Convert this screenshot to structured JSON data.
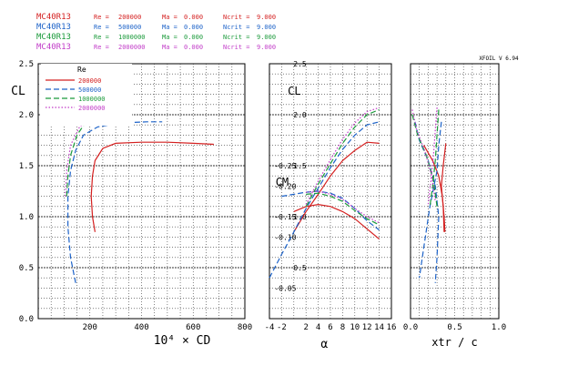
{
  "header": {
    "lines": [
      {
        "airfoil": "MC40R13",
        "re_label": "Re =",
        "re_value": "200000",
        "ma_label": "Ma =",
        "ma_value": "0.000",
        "ncrit_label": "Ncrit =",
        "ncrit_value": "9.000",
        "color": "#d42020"
      },
      {
        "airfoil": "MC40R13",
        "re_label": "Re =",
        "re_value": "500000",
        "ma_label": "Ma =",
        "ma_value": "0.000",
        "ncrit_label": "Ncrit =",
        "ncrit_value": "9.000",
        "color": "#1c62c8"
      },
      {
        "airfoil": "MC40R13",
        "re_label": "Re =",
        "re_value": "1000000",
        "ma_label": "Ma =",
        "ma_value": "0.000",
        "ncrit_label": "Ncrit =",
        "ncrit_value": "9.000",
        "color": "#1a9a3a"
      },
      {
        "airfoil": "MC40R13",
        "re_label": "Re =",
        "re_value": "2000000",
        "ma_label": "Ma =",
        "ma_value": "0.000",
        "ncrit_label": "Ncrit =",
        "ncrit_value": "9.000",
        "color": "#c23cc8"
      }
    ],
    "version": "XFOIL V 6.94"
  },
  "legend": {
    "title": "Re",
    "placement": "top-left of drag polar",
    "entries": [
      "200000",
      "500000",
      "1000000",
      "2000000"
    ]
  },
  "chart_data": [
    {
      "type": "line",
      "panel": "drag-polar",
      "xlabel": "10⁴ × C_D",
      "ylabel": "C_L",
      "xlim": [
        0,
        800
      ],
      "ylim": [
        0,
        2.5
      ],
      "xticks": [
        "200",
        "400",
        "600",
        "800"
      ],
      "yticks": [
        "0.0",
        "0.5",
        "1.0",
        "1.5",
        "2.0",
        "2.5"
      ],
      "grid": true,
      "series": [
        {
          "name": "200000",
          "color": "#d42020",
          "style": "solid",
          "points": [
            [
              220,
              0.85
            ],
            [
              210,
              1.0
            ],
            [
              205,
              1.2
            ],
            [
              210,
              1.4
            ],
            [
              220,
              1.55
            ],
            [
              250,
              1.67
            ],
            [
              300,
              1.72
            ],
            [
              400,
              1.73
            ],
            [
              500,
              1.73
            ],
            [
              600,
              1.72
            ],
            [
              680,
              1.71
            ]
          ]
        },
        {
          "name": "500000",
          "color": "#1c62c8",
          "style": "dashed",
          "points": [
            [
              145,
              0.35
            ],
            [
              125,
              0.6
            ],
            [
              115,
              0.9
            ],
            [
              115,
              1.2
            ],
            [
              125,
              1.45
            ],
            [
              145,
              1.65
            ],
            [
              175,
              1.8
            ],
            [
              230,
              1.88
            ],
            [
              320,
              1.92
            ],
            [
              420,
              1.93
            ],
            [
              480,
              1.93
            ]
          ]
        },
        {
          "name": "1000000",
          "color": "#1a9a3a",
          "style": "dashed",
          "points": [
            [
              110,
              1.2
            ],
            [
              115,
              1.4
            ],
            [
              125,
              1.6
            ],
            [
              150,
              1.8
            ],
            [
              190,
              1.95
            ],
            [
              250,
              2.02
            ],
            [
              320,
              2.05
            ]
          ]
        },
        {
          "name": "2000000",
          "color": "#c23cc8",
          "style": "dotted",
          "points": [
            [
              105,
              1.2
            ],
            [
              110,
              1.45
            ],
            [
              125,
              1.7
            ],
            [
              160,
              1.88
            ],
            [
              220,
              2.0
            ],
            [
              300,
              2.06
            ]
          ]
        }
      ]
    },
    {
      "type": "line",
      "panel": "lift-and-moment",
      "xlabel": "α",
      "ylabel": "C_L",
      "ylabel2": "C_M",
      "xlim": [
        -4,
        16
      ],
      "ylim": [
        0,
        2.5
      ],
      "xticks": [
        "-4",
        "-2",
        "2",
        "4",
        "6",
        "8",
        "10",
        "12",
        "14",
        "16"
      ],
      "yticks": [
        "0.5",
        "1.0",
        "1.5",
        "2.0",
        "2.5"
      ],
      "cm_ticks": [
        "-0.05",
        "-0.10",
        "-0.15",
        "-0.20",
        "-0.25"
      ],
      "grid": true,
      "series": [
        {
          "name": "200000",
          "color": "#d42020",
          "style": "solid",
          "cl_points": [
            [
              0,
              0.85
            ],
            [
              2,
              1.05
            ],
            [
              4,
              1.22
            ],
            [
              6,
              1.4
            ],
            [
              8,
              1.55
            ],
            [
              10,
              1.65
            ],
            [
              12,
              1.73
            ],
            [
              14,
              1.72
            ]
          ],
          "cm_points": [
            [
              0,
              1.05
            ],
            [
              2,
              1.1
            ],
            [
              4,
              1.12
            ],
            [
              6,
              1.1
            ],
            [
              8,
              1.05
            ],
            [
              10,
              0.98
            ],
            [
              12,
              0.88
            ],
            [
              14,
              0.78
            ]
          ]
        },
        {
          "name": "500000",
          "color": "#1c62c8",
          "style": "dashed",
          "cl_points": [
            [
              -4,
              0.4
            ],
            [
              -2,
              0.63
            ],
            [
              0,
              0.85
            ],
            [
              2,
              1.08
            ],
            [
              4,
              1.28
            ],
            [
              6,
              1.48
            ],
            [
              8,
              1.66
            ],
            [
              10,
              1.8
            ],
            [
              12,
              1.9
            ],
            [
              14,
              1.93
            ]
          ],
          "cm_points": [
            [
              -2,
              1.2
            ],
            [
              0,
              1.22
            ],
            [
              2,
              1.24
            ],
            [
              4,
              1.25
            ],
            [
              6,
              1.23
            ],
            [
              8,
              1.18
            ],
            [
              10,
              1.08
            ],
            [
              12,
              0.96
            ],
            [
              14,
              0.87
            ]
          ]
        },
        {
          "name": "1000000",
          "color": "#1a9a3a",
          "style": "dashed",
          "cl_points": [
            [
              2,
              1.1
            ],
            [
              4,
              1.32
            ],
            [
              6,
              1.52
            ],
            [
              8,
              1.72
            ],
            [
              10,
              1.88
            ],
            [
              12,
              2.0
            ],
            [
              14,
              2.05
            ]
          ],
          "cm_points": [
            [
              2,
              1.22
            ],
            [
              4,
              1.23
            ],
            [
              6,
              1.2
            ],
            [
              8,
              1.15
            ],
            [
              10,
              1.06
            ],
            [
              12,
              0.98
            ],
            [
              14,
              0.92
            ]
          ]
        },
        {
          "name": "2000000",
          "color": "#c23cc8",
          "style": "dotted",
          "cl_points": [
            [
              2,
              1.12
            ],
            [
              4,
              1.35
            ],
            [
              6,
              1.56
            ],
            [
              8,
              1.76
            ],
            [
              10,
              1.92
            ],
            [
              12,
              2.03
            ],
            [
              14,
              2.07
            ]
          ],
          "cm_points": [
            [
              2,
              1.24
            ],
            [
              4,
              1.25
            ],
            [
              6,
              1.22
            ],
            [
              8,
              1.17
            ],
            [
              10,
              1.08
            ],
            [
              12,
              1.0
            ],
            [
              14,
              0.94
            ]
          ]
        }
      ]
    },
    {
      "type": "line",
      "panel": "transition",
      "xlabel": "x_tr / c",
      "xlim": [
        0,
        1.0
      ],
      "ylim": [
        0,
        2.5
      ],
      "xticks": [
        "0.0",
        "0.5",
        "1.0"
      ],
      "grid": true,
      "series": [
        {
          "name": "200000",
          "color": "#d42020",
          "style": "solid",
          "upper": [
            [
              0.15,
              1.7
            ],
            [
              0.25,
              1.55
            ],
            [
              0.32,
              1.4
            ],
            [
              0.36,
              1.2
            ],
            [
              0.38,
              1.0
            ],
            [
              0.39,
              0.85
            ]
          ],
          "lower": [
            [
              0.4,
              1.72
            ],
            [
              0.37,
              1.5
            ],
            [
              0.35,
              1.3
            ],
            [
              0.37,
              1.1
            ],
            [
              0.38,
              0.85
            ]
          ]
        },
        {
          "name": "500000",
          "color": "#1c62c8",
          "style": "dashed",
          "upper": [
            [
              0.05,
              1.93
            ],
            [
              0.1,
              1.75
            ],
            [
              0.2,
              1.55
            ],
            [
              0.28,
              1.3
            ],
            [
              0.32,
              1.0
            ],
            [
              0.3,
              0.6
            ],
            [
              0.28,
              0.35
            ]
          ],
          "lower": [
            [
              0.35,
              1.93
            ],
            [
              0.32,
              1.7
            ],
            [
              0.3,
              1.45
            ],
            [
              0.22,
              1.1
            ],
            [
              0.15,
              0.7
            ],
            [
              0.1,
              0.4
            ]
          ]
        },
        {
          "name": "1000000",
          "color": "#1a9a3a",
          "style": "dashed",
          "upper": [
            [
              0.02,
              2.0
            ],
            [
              0.08,
              1.8
            ],
            [
              0.18,
              1.6
            ],
            [
              0.26,
              1.35
            ],
            [
              0.3,
              1.1
            ]
          ],
          "lower": [
            [
              0.32,
              2.05
            ],
            [
              0.3,
              1.8
            ],
            [
              0.28,
              1.55
            ],
            [
              0.25,
              1.3
            ],
            [
              0.22,
              1.1
            ]
          ]
        },
        {
          "name": "2000000",
          "color": "#c23cc8",
          "style": "dotted",
          "upper": [
            [
              0.02,
              2.05
            ],
            [
              0.07,
              1.85
            ],
            [
              0.16,
              1.65
            ],
            [
              0.24,
              1.4
            ],
            [
              0.28,
              1.15
            ]
          ],
          "lower": [
            [
              0.3,
              2.07
            ],
            [
              0.28,
              1.85
            ],
            [
              0.26,
              1.6
            ],
            [
              0.23,
              1.35
            ],
            [
              0.2,
              1.12
            ]
          ]
        }
      ]
    }
  ]
}
